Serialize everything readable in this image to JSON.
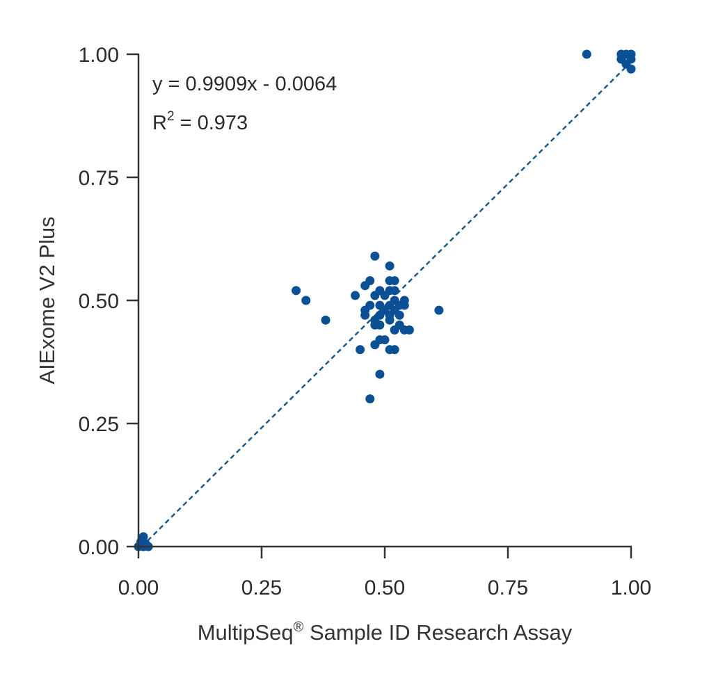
{
  "chart_data": {
    "type": "scatter",
    "title": "",
    "xlabel": "MultipSeq",
    "xlabel_mark": "®",
    "xlabel_rest": " Sample ID Research Assay",
    "ylabel": "AIExome V2 Plus",
    "xlim": [
      0,
      1
    ],
    "ylim": [
      0,
      1
    ],
    "xticks": [
      "0.00",
      "0.25",
      "0.50",
      "0.75",
      "1.00"
    ],
    "yticks": [
      "0.00",
      "0.25",
      "0.50",
      "0.75",
      "1.00"
    ],
    "grid": false,
    "point_color": "#0b4f94",
    "trend_color": "#1a5a8a",
    "annotation": {
      "equation": "y = 0.9909x - 0.0064",
      "r2_label": "R",
      "r2_exp": "2",
      "r2_value": " = 0.973"
    },
    "trendline": {
      "slope": 0.9909,
      "intercept": -0.0064,
      "x_range": [
        0.0065,
        0.99
      ]
    },
    "points": [
      [
        0.0,
        0.0
      ],
      [
        0.01,
        0.0
      ],
      [
        0.02,
        0.0
      ],
      [
        0.01,
        0.02
      ],
      [
        0.005,
        0.01
      ],
      [
        0.015,
        0.005
      ],
      [
        0.32,
        0.52
      ],
      [
        0.34,
        0.5
      ],
      [
        0.38,
        0.46
      ],
      [
        0.44,
        0.51
      ],
      [
        0.45,
        0.4
      ],
      [
        0.46,
        0.48
      ],
      [
        0.46,
        0.53
      ],
      [
        0.46,
        0.47
      ],
      [
        0.47,
        0.54
      ],
      [
        0.47,
        0.49
      ],
      [
        0.47,
        0.3
      ],
      [
        0.48,
        0.59
      ],
      [
        0.48,
        0.51
      ],
      [
        0.48,
        0.46
      ],
      [
        0.48,
        0.45
      ],
      [
        0.48,
        0.41
      ],
      [
        0.49,
        0.52
      ],
      [
        0.49,
        0.49
      ],
      [
        0.49,
        0.47
      ],
      [
        0.49,
        0.45
      ],
      [
        0.49,
        0.42
      ],
      [
        0.49,
        0.35
      ],
      [
        0.5,
        0.51
      ],
      [
        0.5,
        0.48
      ],
      [
        0.5,
        0.42
      ],
      [
        0.51,
        0.57
      ],
      [
        0.51,
        0.54
      ],
      [
        0.51,
        0.52
      ],
      [
        0.51,
        0.49
      ],
      [
        0.51,
        0.47
      ],
      [
        0.51,
        0.46
      ],
      [
        0.51,
        0.4
      ],
      [
        0.52,
        0.54
      ],
      [
        0.52,
        0.52
      ],
      [
        0.52,
        0.5
      ],
      [
        0.52,
        0.48
      ],
      [
        0.52,
        0.44
      ],
      [
        0.52,
        0.4
      ],
      [
        0.53,
        0.49
      ],
      [
        0.53,
        0.47
      ],
      [
        0.53,
        0.45
      ],
      [
        0.54,
        0.5
      ],
      [
        0.54,
        0.49
      ],
      [
        0.54,
        0.44
      ],
      [
        0.55,
        0.44
      ],
      [
        0.61,
        0.48
      ],
      [
        0.91,
        1.0
      ],
      [
        0.98,
        1.0
      ],
      [
        0.99,
        1.0
      ],
      [
        1.0,
        1.0
      ],
      [
        0.98,
        0.99
      ],
      [
        0.99,
        0.98
      ],
      [
        1.0,
        0.99
      ],
      [
        1.0,
        0.97
      ]
    ]
  }
}
